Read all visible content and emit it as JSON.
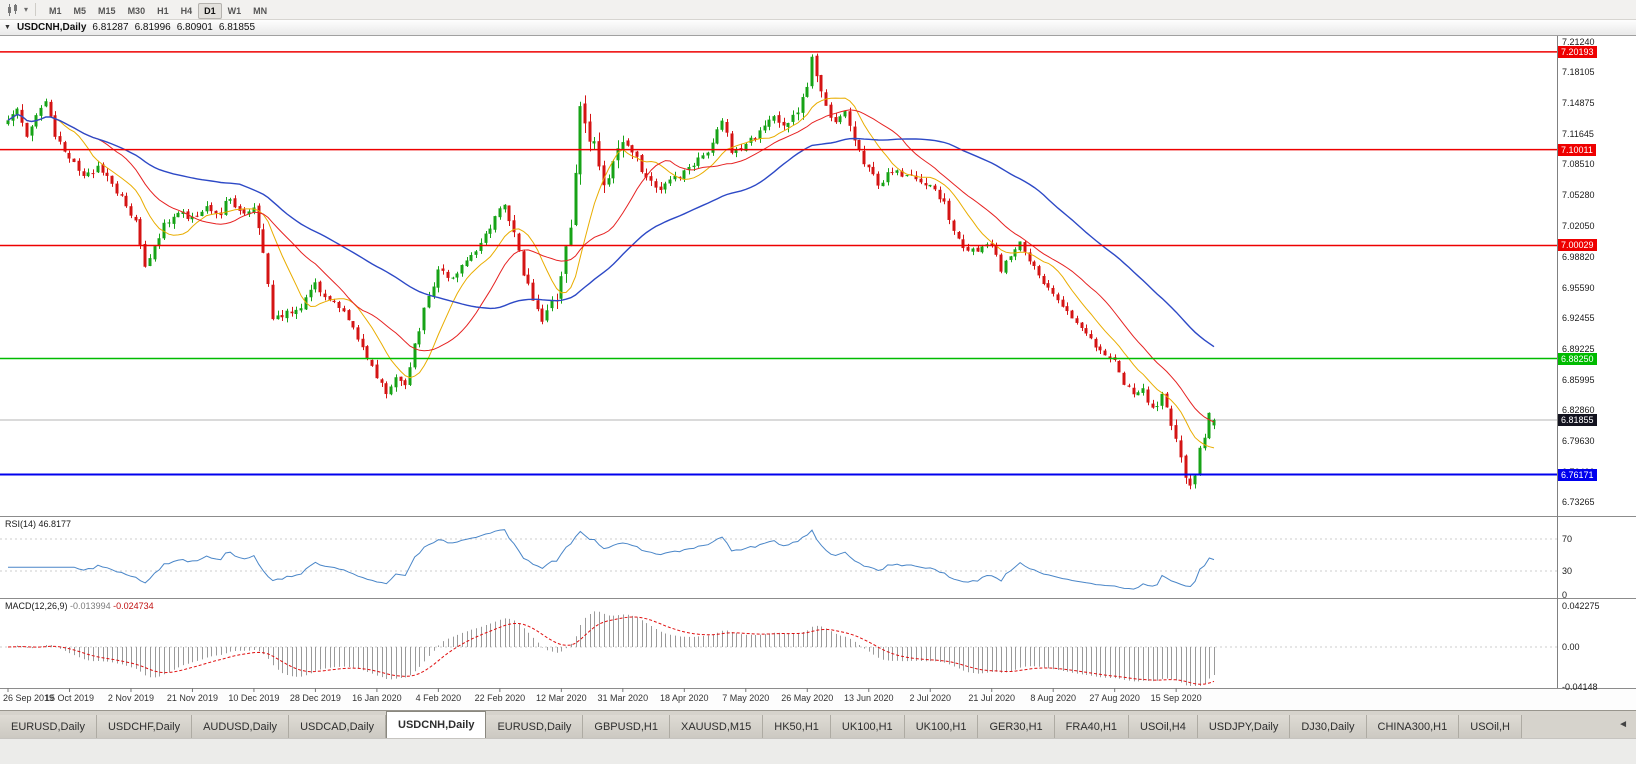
{
  "toolbar": {
    "timeframes": [
      "M1",
      "M5",
      "M15",
      "M30",
      "H1",
      "H4",
      "D1",
      "W1",
      "MN"
    ],
    "active_timeframe": "D1",
    "caret": "▾"
  },
  "title_bar": {
    "collapse_icon": "▼",
    "symbol_period": "USDCNH,Daily",
    "open": "6.81287",
    "high": "6.81996",
    "low": "6.80901",
    "close": "6.81855"
  },
  "price_axis": {
    "labels": [
      "7.21240",
      "7.18105",
      "7.14875",
      "7.11645",
      "7.08510",
      "7.05280",
      "7.02050",
      "6.98820",
      "6.95590",
      "6.92455",
      "6.89225",
      "6.85995",
      "6.82860",
      "6.79630",
      "6.76400",
      "6.73265"
    ]
  },
  "hlines": [
    {
      "value": "7.20193",
      "price": 7.20193,
      "color": "#EE0000",
      "width": 1.5,
      "type": "resistance"
    },
    {
      "value": "7.10011",
      "price": 7.10011,
      "color": "#EE0000",
      "width": 1.5,
      "type": "resistance"
    },
    {
      "value": "7.00029",
      "price": 7.00029,
      "color": "#EE0000",
      "width": 1.5,
      "type": "resistance"
    },
    {
      "value": "6.88250",
      "price": 6.8825,
      "color": "#00BB00",
      "width": 1.5,
      "type": "support"
    },
    {
      "value": "6.76171",
      "price": 6.76171,
      "color": "#0000EE",
      "width": 2,
      "type": "support"
    }
  ],
  "current_price": {
    "value": "6.81855",
    "price": 6.81855,
    "badge_color": "#13131f",
    "line_color": "#b4b4b4"
  },
  "rsi_panel": {
    "label": "RSI(14)",
    "value": "46.8177",
    "levels": [
      "70",
      "30",
      "0"
    ],
    "line_color": "#4a86c8"
  },
  "macd_panel": {
    "label": "MACD(12,26,9)",
    "value_main": "-0.013994",
    "value_signal": "-0.024734",
    "axis_labels": [
      "0.042275",
      "0.00",
      "-0.04148"
    ],
    "hist_color": "#9a9a9a",
    "signal_color": "#e01010"
  },
  "date_axis": {
    "labels": [
      "26 Sep 2019",
      "15 Oct 2019",
      "2 Nov 2019",
      "21 Nov 2019",
      "10 Dec 2019",
      "28 Dec 2019",
      "16 Jan 2020",
      "4 Feb 2020",
      "22 Feb 2020",
      "12 Mar 2020",
      "31 Mar 2020",
      "18 Apr 2020",
      "7 May 2020",
      "26 May 2020",
      "13 Jun 2020",
      "2 Jul 2020",
      "21 Jul 2020",
      "8 Aug 2020",
      "27 Aug 2020",
      "15 Sep 2020"
    ]
  },
  "tab_bar": {
    "tabs": [
      "EURUSD,Daily",
      "USDCHF,Daily",
      "AUDUSD,Daily",
      "USDCAD,Daily",
      "USDCNH,Daily",
      "EURUSD,Daily",
      "GBPUSD,H1",
      "XAUUSD,M15",
      "HK50,H1",
      "UK100,H1",
      "UK100,H1",
      "GER30,H1",
      "FRA40,H1",
      "USOil,H4",
      "USDJPY,Daily",
      "DJ30,Daily",
      "CHINA300,H1",
      "USOil,H"
    ],
    "active_index": 4,
    "scroll_icon": "◄"
  },
  "chart_data": {
    "type": "candlestick",
    "symbol": "USDCNH",
    "timeframe": "Daily",
    "n_candles": 256,
    "seed": 13,
    "price_range": [
      6.7185,
      7.2185
    ],
    "ohlc_last": {
      "open": 6.81287,
      "high": 6.81996,
      "low": 6.80901,
      "close": 6.81855
    },
    "close_waypoints": [
      [
        0,
        7.13
      ],
      [
        2,
        7.147
      ],
      [
        4,
        7.118
      ],
      [
        6,
        7.14
      ],
      [
        8,
        7.15
      ],
      [
        10,
        7.112
      ],
      [
        13,
        7.094
      ],
      [
        16,
        7.072
      ],
      [
        19,
        7.082
      ],
      [
        22,
        7.066
      ],
      [
        25,
        7.042
      ],
      [
        27,
        7.028
      ],
      [
        29,
        6.982
      ],
      [
        31,
        6.996
      ],
      [
        33,
        7.022
      ],
      [
        36,
        7.036
      ],
      [
        39,
        7.03
      ],
      [
        42,
        7.042
      ],
      [
        45,
        7.034
      ],
      [
        47,
        7.052
      ],
      [
        49,
        7.034
      ],
      [
        52,
        7.042
      ],
      [
        54,
        6.985
      ],
      [
        56,
        6.928
      ],
      [
        59,
        6.93
      ],
      [
        62,
        6.938
      ],
      [
        65,
        6.958
      ],
      [
        68,
        6.942
      ],
      [
        71,
        6.93
      ],
      [
        74,
        6.902
      ],
      [
        77,
        6.872
      ],
      [
        80,
        6.848
      ],
      [
        82,
        6.862
      ],
      [
        84,
        6.858
      ],
      [
        86,
        6.896
      ],
      [
        88,
        6.932
      ],
      [
        91,
        6.972
      ],
      [
        94,
        6.968
      ],
      [
        97,
        6.986
      ],
      [
        100,
        7.002
      ],
      [
        103,
        7.028
      ],
      [
        105,
        7.042
      ],
      [
        107,
        7.018
      ],
      [
        109,
        6.972
      ],
      [
        111,
        6.942
      ],
      [
        113,
        6.918
      ],
      [
        115,
        6.938
      ],
      [
        117,
        6.962
      ],
      [
        119,
        7.028
      ],
      [
        120,
        7.085
      ],
      [
        121,
        7.158
      ],
      [
        122,
        7.12
      ],
      [
        124,
        7.112
      ],
      [
        126,
        7.065
      ],
      [
        128,
        7.088
      ],
      [
        130,
        7.102
      ],
      [
        132,
        7.096
      ],
      [
        134,
        7.082
      ],
      [
        137,
        7.058
      ],
      [
        140,
        7.068
      ],
      [
        143,
        7.076
      ],
      [
        146,
        7.088
      ],
      [
        149,
        7.106
      ],
      [
        151,
        7.132
      ],
      [
        153,
        7.098
      ],
      [
        156,
        7.104
      ],
      [
        159,
        7.118
      ],
      [
        162,
        7.134
      ],
      [
        165,
        7.126
      ],
      [
        168,
        7.152
      ],
      [
        170,
        7.192
      ],
      [
        171,
        7.172
      ],
      [
        173,
        7.148
      ],
      [
        175,
        7.126
      ],
      [
        177,
        7.136
      ],
      [
        179,
        7.112
      ],
      [
        181,
        7.088
      ],
      [
        184,
        7.066
      ],
      [
        187,
        7.076
      ],
      [
        190,
        7.074
      ],
      [
        193,
        7.068
      ],
      [
        196,
        7.06
      ],
      [
        198,
        7.042
      ],
      [
        200,
        7.012
      ],
      [
        203,
        6.992
      ],
      [
        206,
        7.0
      ],
      [
        208,
        7.002
      ],
      [
        210,
        6.976
      ],
      [
        212,
        6.992
      ],
      [
        214,
        7.004
      ],
      [
        216,
        6.986
      ],
      [
        219,
        6.962
      ],
      [
        222,
        6.946
      ],
      [
        225,
        6.922
      ],
      [
        228,
        6.906
      ],
      [
        231,
        6.892
      ],
      [
        234,
        6.882
      ],
      [
        236,
        6.858
      ],
      [
        238,
        6.842
      ],
      [
        240,
        6.848
      ],
      [
        242,
        6.832
      ],
      [
        244,
        6.842
      ],
      [
        246,
        6.812
      ],
      [
        248,
        6.778
      ],
      [
        250,
        6.748
      ],
      [
        251,
        6.762
      ],
      [
        252,
        6.788
      ],
      [
        253,
        6.802
      ],
      [
        254,
        6.824
      ],
      [
        255,
        6.8186
      ]
    ],
    "volatility_waypoints": [
      [
        0,
        0.014
      ],
      [
        20,
        0.013
      ],
      [
        40,
        0.012
      ],
      [
        52,
        0.013
      ],
      [
        54,
        0.022
      ],
      [
        58,
        0.012
      ],
      [
        80,
        0.012
      ],
      [
        100,
        0.011
      ],
      [
        113,
        0.016
      ],
      [
        118,
        0.026
      ],
      [
        121,
        0.038
      ],
      [
        125,
        0.024
      ],
      [
        130,
        0.018
      ],
      [
        140,
        0.011
      ],
      [
        150,
        0.012
      ],
      [
        163,
        0.012
      ],
      [
        169,
        0.02
      ],
      [
        175,
        0.014
      ],
      [
        185,
        0.012
      ],
      [
        200,
        0.012
      ],
      [
        210,
        0.009
      ],
      [
        225,
        0.009
      ],
      [
        240,
        0.011
      ],
      [
        248,
        0.016
      ],
      [
        252,
        0.012
      ],
      [
        255,
        0.005
      ]
    ],
    "moving_averages": [
      {
        "period": 10,
        "color": "#e9ad00",
        "width": 1
      },
      {
        "period": 20,
        "color": "#e62222",
        "width": 1
      },
      {
        "period": 50,
        "color": "#2d49c6",
        "width": 1.4
      }
    ],
    "candle_colors": {
      "up": "#17a317",
      "down": "#d41414"
    },
    "indicators": {
      "rsi_period": 14,
      "macd_params": [
        12,
        26,
        9
      ]
    }
  }
}
